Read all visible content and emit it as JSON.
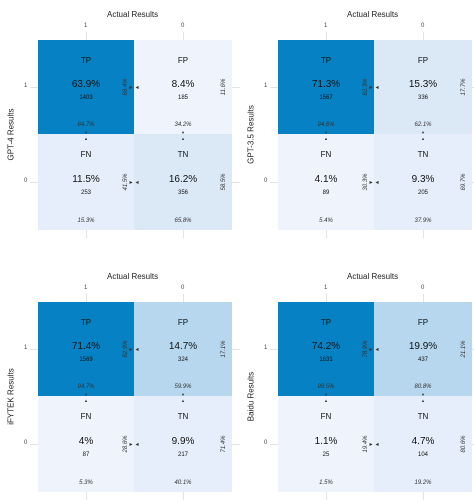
{
  "colors": {
    "dark": "#0581c4",
    "mid": "#b7d7ee",
    "light": "#dbe9f7",
    "pale": "#eef3fc",
    "paler": "#e5eefa"
  },
  "chart_data": [
    {
      "type": "heatmap",
      "title": "Actual Results",
      "ylabel": "GPT-4 Results",
      "x_ticks": [
        "1",
        "0"
      ],
      "y_ticks": [
        "1",
        "0"
      ],
      "cells": [
        {
          "label": "TP",
          "pct": "63.9%",
          "count": "1403",
          "col_pct": "84.7%",
          "row_pct": "88.4%",
          "shade": "dark"
        },
        {
          "label": "FP",
          "pct": "8.4%",
          "count": "185",
          "col_pct": "34.2%",
          "row_pct": "11.6%",
          "shade": "pale"
        },
        {
          "label": "FN",
          "pct": "11.5%",
          "count": "253",
          "col_pct": "15.3%",
          "row_pct": "41.5%",
          "shade": "paler"
        },
        {
          "label": "TN",
          "pct": "16.2%",
          "count": "356",
          "col_pct": "65.8%",
          "row_pct": "58.5%",
          "shade": "light"
        }
      ]
    },
    {
      "type": "heatmap",
      "title": "Actual Results",
      "ylabel": "GPT-3.5 Results",
      "x_ticks": [
        "1",
        "0"
      ],
      "y_ticks": [
        "1",
        "0"
      ],
      "cells": [
        {
          "label": "TP",
          "pct": "71.3%",
          "count": "1567",
          "col_pct": "94.6%",
          "row_pct": "82.3%",
          "shade": "dark"
        },
        {
          "label": "FP",
          "pct": "15.3%",
          "count": "336",
          "col_pct": "62.1%",
          "row_pct": "17.7%",
          "shade": "light"
        },
        {
          "label": "FN",
          "pct": "4.1%",
          "count": "89",
          "col_pct": "5.4%",
          "row_pct": "30.3%",
          "shade": "pale"
        },
        {
          "label": "TN",
          "pct": "9.3%",
          "count": "205",
          "col_pct": "37.9%",
          "row_pct": "69.7%",
          "shade": "paler"
        }
      ]
    },
    {
      "type": "heatmap",
      "title": "Actual Results",
      "ylabel": "iFYTEK Results",
      "x_ticks": [
        "1",
        "0"
      ],
      "y_ticks": [
        "1",
        "0"
      ],
      "cells": [
        {
          "label": "TP",
          "pct": "71.4%",
          "count": "1569",
          "col_pct": "94.7%",
          "row_pct": "82.9%",
          "shade": "dark"
        },
        {
          "label": "FP",
          "pct": "14.7%",
          "count": "324",
          "col_pct": "59.9%",
          "row_pct": "17.1%",
          "shade": "mid"
        },
        {
          "label": "FN",
          "pct": "4%",
          "count": "87",
          "col_pct": "5.3%",
          "row_pct": "28.6%",
          "shade": "pale"
        },
        {
          "label": "TN",
          "pct": "9.9%",
          "count": "217",
          "col_pct": "40.1%",
          "row_pct": "71.4%",
          "shade": "paler"
        }
      ]
    },
    {
      "type": "heatmap",
      "title": "Actual Results",
      "ylabel": "Baidu Results",
      "x_ticks": [
        "1",
        "0"
      ],
      "y_ticks": [
        "1",
        "0"
      ],
      "cells": [
        {
          "label": "TP",
          "pct": "74.2%",
          "count": "1631",
          "col_pct": "98.5%",
          "row_pct": "78.9%",
          "shade": "dark"
        },
        {
          "label": "FP",
          "pct": "19.9%",
          "count": "437",
          "col_pct": "80.8%",
          "row_pct": "21.1%",
          "shade": "mid"
        },
        {
          "label": "FN",
          "pct": "1.1%",
          "count": "25",
          "col_pct": "1.5%",
          "row_pct": "19.4%",
          "shade": "pale"
        },
        {
          "label": "TN",
          "pct": "4.7%",
          "count": "104",
          "col_pct": "19.2%",
          "row_pct": "80.6%",
          "shade": "paler"
        }
      ]
    }
  ]
}
